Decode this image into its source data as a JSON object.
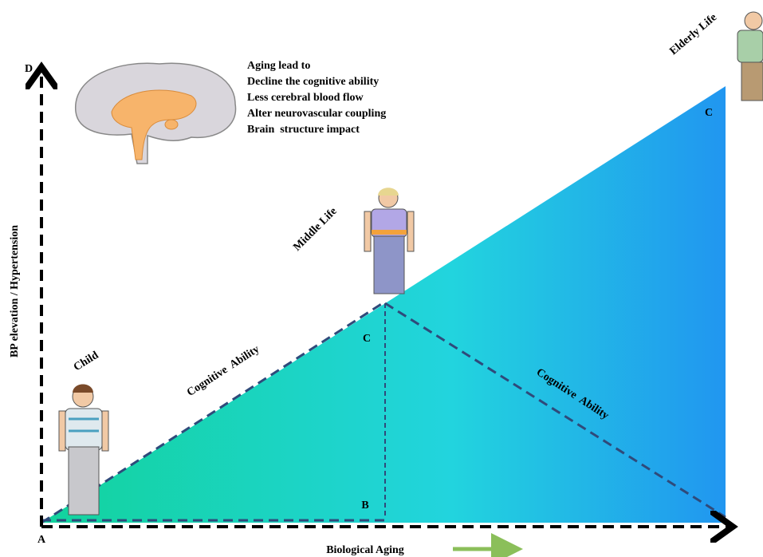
{
  "axes": {
    "y_label": "BP elevation / Hypertension",
    "x_label": "Biological Aging",
    "y_end": "D",
    "origin": "A"
  },
  "points": {
    "base": "B",
    "middle": "C",
    "top": "C"
  },
  "stages": {
    "child": "Child",
    "middle": "Middle Life",
    "elderly": "Elderly Life"
  },
  "lines": {
    "rising": "Cognitive  Ability",
    "falling": "Cognitive  Ability"
  },
  "annotation": {
    "title": "Aging lead to",
    "items": [
      "Decline the cognitive ability",
      "Less cerebral blood flow",
      "Alter neurovascular coupling",
      "Brain  structure impact"
    ]
  }
}
